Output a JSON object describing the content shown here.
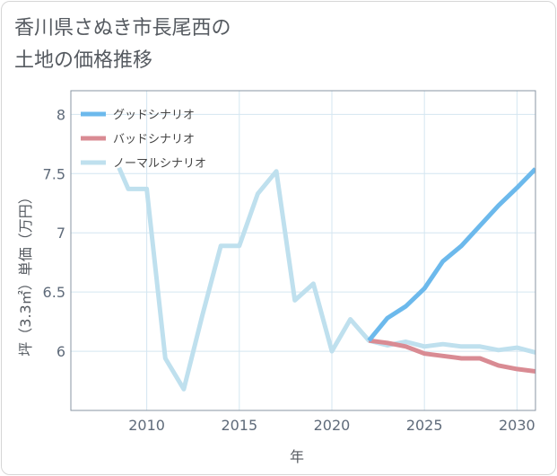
{
  "title_lines": [
    "香川県さぬき市長尾西の",
    "土地の価格推移"
  ],
  "chart_data": {
    "type": "line",
    "title": "香川県さぬき市長尾西の土地の価格推移",
    "xlabel": "年",
    "ylabel": "坪（3.3㎡）単価（万円）",
    "xlim": [
      2005.9,
      2031
    ],
    "ylim": [
      5.5,
      8.2
    ],
    "x_ticks": [
      2010,
      2015,
      2020,
      2025,
      2030
    ],
    "y_ticks": [
      6,
      6.5,
      7,
      7.5,
      8
    ],
    "grid": true,
    "legend_position": "top-left",
    "series": [
      {
        "name": "グッドシナリオ",
        "color": "#6cb9ec",
        "x": [
          2022,
          2023,
          2024,
          2025,
          2026,
          2027,
          2028,
          2029,
          2030,
          2031
        ],
        "values": [
          6.09,
          6.28,
          6.38,
          6.53,
          6.76,
          6.89,
          7.06,
          7.23,
          7.38,
          7.54
        ]
      },
      {
        "name": "バッドシナリオ",
        "color": "#d98b93",
        "x": [
          2022,
          2023,
          2024,
          2025,
          2026,
          2027,
          2028,
          2029,
          2030,
          2031
        ],
        "values": [
          6.09,
          6.07,
          6.04,
          5.98,
          5.96,
          5.94,
          5.94,
          5.88,
          5.85,
          5.83
        ]
      },
      {
        "name": "ノーマルシナリオ",
        "color": "#bfe0ee",
        "x": [
          2008.5,
          2009,
          2010,
          2011,
          2012,
          2013,
          2014,
          2015,
          2016,
          2017,
          2018,
          2019,
          2020,
          2021,
          2022,
          2023,
          2024,
          2025,
          2026,
          2027,
          2028,
          2029,
          2030,
          2031
        ],
        "values": [
          7.55,
          7.37,
          7.37,
          5.94,
          5.68,
          6.3,
          6.89,
          6.89,
          7.33,
          7.52,
          6.43,
          6.57,
          6.0,
          6.27,
          6.09,
          6.05,
          6.08,
          6.04,
          6.06,
          6.04,
          6.04,
          6.01,
          6.03,
          5.99
        ]
      }
    ]
  }
}
